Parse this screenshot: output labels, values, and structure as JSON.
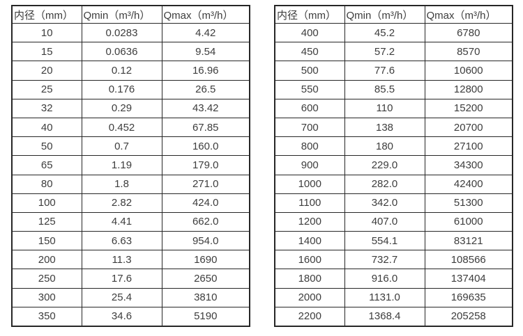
{
  "colors": {
    "background": "#ffffff",
    "text": "#3d3d3d",
    "border": "#262626"
  },
  "tables": [
    {
      "name": "flow-spec-table-small-diameters",
      "headers": [
        "内径（mm）",
        "Qmin（m³/h）",
        "Qmax（m³/h）"
      ],
      "rows": [
        [
          "10",
          "0.0283",
          "4.42"
        ],
        [
          "15",
          "0.0636",
          "9.54"
        ],
        [
          "20",
          "0.12",
          "16.96"
        ],
        [
          "25",
          "0.176",
          "26.5"
        ],
        [
          "32",
          "0.29",
          "43.42"
        ],
        [
          "40",
          "0.452",
          "67.85"
        ],
        [
          "50",
          "0.7",
          "160.0"
        ],
        [
          "65",
          "1.19",
          "179.0"
        ],
        [
          "80",
          "1.8",
          "271.0"
        ],
        [
          "100",
          "2.82",
          "424.0"
        ],
        [
          "125",
          "4.41",
          "662.0"
        ],
        [
          "150",
          "6.63",
          "954.0"
        ],
        [
          "200",
          "11.3",
          "1690"
        ],
        [
          "250",
          "17.6",
          "2650"
        ],
        [
          "300",
          "25.4",
          "3810"
        ],
        [
          "350",
          "34.6",
          "5190"
        ]
      ]
    },
    {
      "name": "flow-spec-table-large-diameters",
      "headers": [
        "内径（mm）",
        "Qmin（m³/h）",
        "Qmax（m³/h）"
      ],
      "rows": [
        [
          "400",
          "45.2",
          "6780"
        ],
        [
          "450",
          "57.2",
          "8570"
        ],
        [
          "500",
          "77.6",
          "10600"
        ],
        [
          "550",
          "85.5",
          "12800"
        ],
        [
          "600",
          "110",
          "15200"
        ],
        [
          "700",
          "138",
          "20700"
        ],
        [
          "800",
          "180",
          "27100"
        ],
        [
          "900",
          "229.0",
          "34300"
        ],
        [
          "1000",
          "282.0",
          "42400"
        ],
        [
          "1100",
          "342.0",
          "51300"
        ],
        [
          "1200",
          "407.0",
          "61000"
        ],
        [
          "1400",
          "554.1",
          "83121"
        ],
        [
          "1600",
          "732.7",
          "108566"
        ],
        [
          "1800",
          "916.0",
          "137404"
        ],
        [
          "2000",
          "1131.0",
          "169635"
        ],
        [
          "2200",
          "1368.4",
          "205258"
        ]
      ]
    }
  ]
}
